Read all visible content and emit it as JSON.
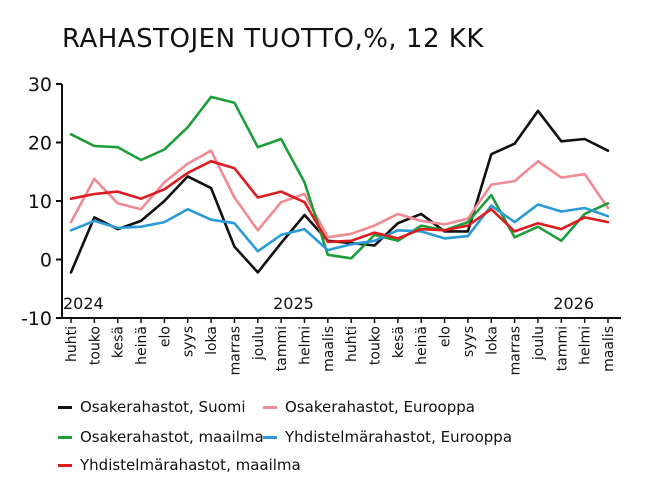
{
  "chart_data": {
    "type": "line",
    "title": "RAHASTOJEN TUOTTO,%, 12 KK",
    "ylim": [
      -10,
      30
    ],
    "yticks": [
      30,
      20,
      10,
      0,
      -10
    ],
    "grid": false,
    "legend_position": "bottom",
    "categories": [
      "huhti",
      "touko",
      "kesä",
      "heinä",
      "elo",
      "syys",
      "loka",
      "marras",
      "joulu",
      "tammi",
      "helmi",
      "maalis",
      "huhti",
      "touko",
      "kesä",
      "heinä",
      "elo",
      "syys",
      "loka",
      "marras",
      "joulu",
      "tammi",
      "helmi",
      "maalis"
    ],
    "year_labels": [
      {
        "label": "2024",
        "index": 0
      },
      {
        "label": "2025",
        "index": 9
      },
      {
        "label": "2026",
        "index": 21
      }
    ],
    "series": [
      {
        "name": "Osakerahastot, Suomi",
        "color": "#111111",
        "values": [
          -2.2,
          7.2,
          5.2,
          6.6,
          10.0,
          14.2,
          12.2,
          2.2,
          -2.2,
          2.8,
          7.6,
          3.2,
          2.8,
          2.4,
          6.2,
          7.8,
          4.8,
          4.8,
          18.0,
          19.8,
          25.4,
          20.2,
          20.6,
          18.6
        ]
      },
      {
        "name": "Osakerahastot, Eurooppa",
        "color": "#f08a93",
        "values": [
          6.4,
          13.8,
          9.6,
          8.6,
          13.2,
          16.4,
          18.6,
          10.6,
          5.0,
          9.8,
          11.2,
          3.8,
          4.4,
          5.8,
          7.8,
          6.6,
          6.0,
          7.0,
          12.8,
          13.4,
          16.8,
          14.0,
          14.6,
          8.8
        ]
      },
      {
        "name": "Osakerahastot, maailma",
        "color": "#1e9e3a",
        "values": [
          21.4,
          19.4,
          19.2,
          17.0,
          18.8,
          22.6,
          27.8,
          26.8,
          19.2,
          20.6,
          13.2,
          0.8,
          0.2,
          4.2,
          3.2,
          5.8,
          5.0,
          6.4,
          11.0,
          3.8,
          5.6,
          3.2,
          7.8,
          9.6
        ]
      },
      {
        "name": "Yhdistelmärahastot, Eurooppa",
        "color": "#2a9ad8",
        "values": [
          5.0,
          6.6,
          5.4,
          5.6,
          6.4,
          8.6,
          6.8,
          6.2,
          1.4,
          4.2,
          5.2,
          1.6,
          2.6,
          3.2,
          5.0,
          4.8,
          3.6,
          4.0,
          9.2,
          6.4,
          9.4,
          8.2,
          8.8,
          7.4
        ]
      },
      {
        "name": "Yhdistelmärahastot, maailma",
        "color": "#dc1c1f",
        "values": [
          10.4,
          11.2,
          11.6,
          10.4,
          12.0,
          14.8,
          16.8,
          15.6,
          10.6,
          11.6,
          9.8,
          3.0,
          3.2,
          4.6,
          3.6,
          5.2,
          5.0,
          5.8,
          8.6,
          4.8,
          6.2,
          5.2,
          7.2,
          6.4
        ]
      }
    ]
  }
}
